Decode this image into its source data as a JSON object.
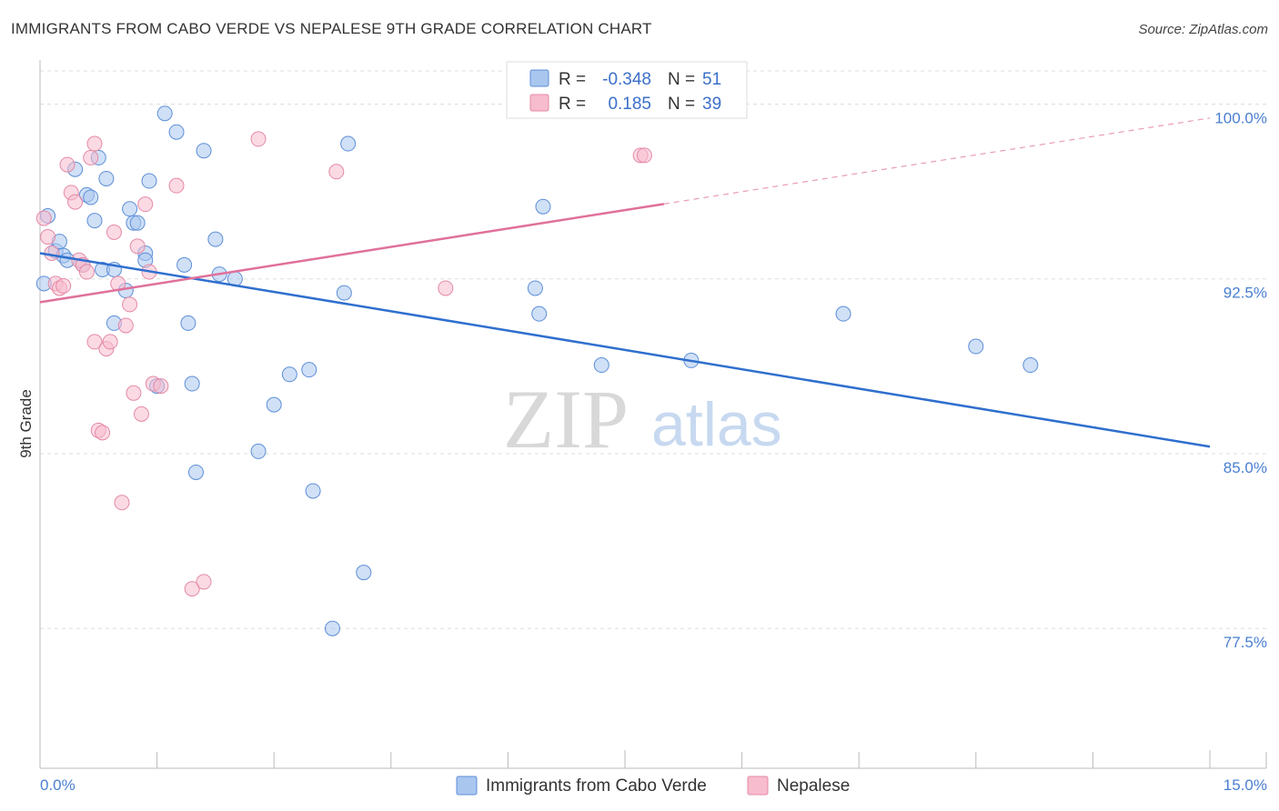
{
  "title": "IMMIGRANTS FROM CABO VERDE VS NEPALESE 9TH GRADE CORRELATION CHART",
  "source": "Source: ZipAtlas.com",
  "watermark": {
    "zip": "ZIP",
    "atlas": "atlas"
  },
  "colors": {
    "blue_fill": "#a9c6ef",
    "blue_stroke": "#5d8fd8",
    "blue_line": "#2f6fce",
    "pink_fill": "#f7bccd",
    "pink_stroke": "#e48aa6",
    "pink_line": "#e0709a",
    "grid": "#dddddd",
    "tick_text": "#4a7fd0"
  },
  "legend": {
    "rows": [
      {
        "r_label": "R =",
        "r_value": "-0.348",
        "n_label": "N =",
        "n_value": "51",
        "series": "blue"
      },
      {
        "r_label": "R =",
        "r_value": "0.185",
        "n_label": "N =",
        "n_value": "39",
        "series": "pink"
      }
    ]
  },
  "chart_data": {
    "type": "scatter",
    "title": "IMMIGRANTS FROM CABO VERDE VS NEPALESE 9TH GRADE CORRELATION CHART",
    "xlabel": "",
    "ylabel": "9th Grade",
    "xlim": [
      0,
      15
    ],
    "ylim": [
      71.5,
      101.5
    ],
    "x_tick_labels": [
      "0.0%",
      "15.0%"
    ],
    "x_tick_values": [
      0,
      15
    ],
    "y_tick_labels": [
      "100.0%",
      "92.5%",
      "85.0%",
      "77.5%"
    ],
    "y_tick_values": [
      100,
      92.5,
      85,
      77.5
    ],
    "grid": true,
    "legend_position": "top-center",
    "series": [
      {
        "name": "Immigrants from Cabo Verde",
        "color": "blue",
        "trend": {
          "x": [
            0,
            15
          ],
          "y": [
            93.6,
            85.3
          ],
          "solid_to": 15
        },
        "points": [
          [
            0.05,
            92.3
          ],
          [
            0.1,
            95.2
          ],
          [
            0.2,
            93.7
          ],
          [
            0.25,
            94.1
          ],
          [
            0.3,
            93.5
          ],
          [
            0.35,
            93.3
          ],
          [
            0.45,
            97.2
          ],
          [
            0.55,
            93.1
          ],
          [
            0.6,
            96.1
          ],
          [
            0.65,
            96.0
          ],
          [
            0.75,
            97.7
          ],
          [
            0.7,
            95.0
          ],
          [
            0.85,
            96.8
          ],
          [
            0.8,
            92.9
          ],
          [
            0.95,
            92.9
          ],
          [
            0.95,
            90.6
          ],
          [
            1.1,
            92.0
          ],
          [
            1.15,
            95.5
          ],
          [
            1.2,
            94.9
          ],
          [
            1.25,
            94.9
          ],
          [
            1.35,
            93.6
          ],
          [
            1.4,
            96.7
          ],
          [
            1.5,
            87.9
          ],
          [
            1.6,
            99.6
          ],
          [
            1.75,
            98.8
          ],
          [
            1.85,
            93.1
          ],
          [
            1.9,
            90.6
          ],
          [
            1.95,
            88.0
          ],
          [
            2.0,
            84.2
          ],
          [
            2.1,
            98.0
          ],
          [
            2.25,
            94.2
          ],
          [
            2.3,
            92.7
          ],
          [
            2.5,
            92.5
          ],
          [
            2.8,
            85.1
          ],
          [
            3.0,
            87.1
          ],
          [
            3.2,
            88.4
          ],
          [
            3.45,
            88.6
          ],
          [
            3.5,
            83.4
          ],
          [
            3.75,
            77.5
          ],
          [
            3.9,
            91.9
          ],
          [
            3.95,
            98.3
          ],
          [
            4.15,
            79.9
          ],
          [
            6.35,
            92.1
          ],
          [
            6.4,
            91.0
          ],
          [
            6.45,
            95.6
          ],
          [
            7.2,
            88.8
          ],
          [
            8.35,
            89.0
          ],
          [
            10.3,
            91.0
          ],
          [
            12.0,
            89.6
          ],
          [
            12.7,
            88.8
          ],
          [
            1.35,
            93.3
          ]
        ]
      },
      {
        "name": "Nepalese",
        "color": "pink",
        "trend": {
          "x": [
            0,
            15
          ],
          "y": [
            91.5,
            99.4
          ],
          "solid_to": 8.0
        },
        "points": [
          [
            0.05,
            95.1
          ],
          [
            0.1,
            94.3
          ],
          [
            0.15,
            93.6
          ],
          [
            0.2,
            92.3
          ],
          [
            0.25,
            92.1
          ],
          [
            0.3,
            92.2
          ],
          [
            0.35,
            97.4
          ],
          [
            0.4,
            96.2
          ],
          [
            0.45,
            95.8
          ],
          [
            0.5,
            93.3
          ],
          [
            0.55,
            93.1
          ],
          [
            0.6,
            92.8
          ],
          [
            0.65,
            97.7
          ],
          [
            0.7,
            98.3
          ],
          [
            0.7,
            89.8
          ],
          [
            0.75,
            86.0
          ],
          [
            0.8,
            85.9
          ],
          [
            0.85,
            89.5
          ],
          [
            0.9,
            89.8
          ],
          [
            0.95,
            94.5
          ],
          [
            1.0,
            92.3
          ],
          [
            1.05,
            82.9
          ],
          [
            1.1,
            90.5
          ],
          [
            1.15,
            91.4
          ],
          [
            1.2,
            87.6
          ],
          [
            1.25,
            93.9
          ],
          [
            1.3,
            86.7
          ],
          [
            1.35,
            95.7
          ],
          [
            1.4,
            92.8
          ],
          [
            1.45,
            88.0
          ],
          [
            1.55,
            87.9
          ],
          [
            1.75,
            96.5
          ],
          [
            1.95,
            79.2
          ],
          [
            2.1,
            79.5
          ],
          [
            2.8,
            98.5
          ],
          [
            3.8,
            97.1
          ],
          [
            5.2,
            92.1
          ],
          [
            7.7,
            97.8
          ],
          [
            7.75,
            97.8
          ]
        ]
      }
    ]
  },
  "bottom_legend": {
    "items": [
      {
        "label": "Immigrants from Cabo Verde",
        "color": "blue"
      },
      {
        "label": "Nepalese",
        "color": "pink"
      }
    ]
  }
}
